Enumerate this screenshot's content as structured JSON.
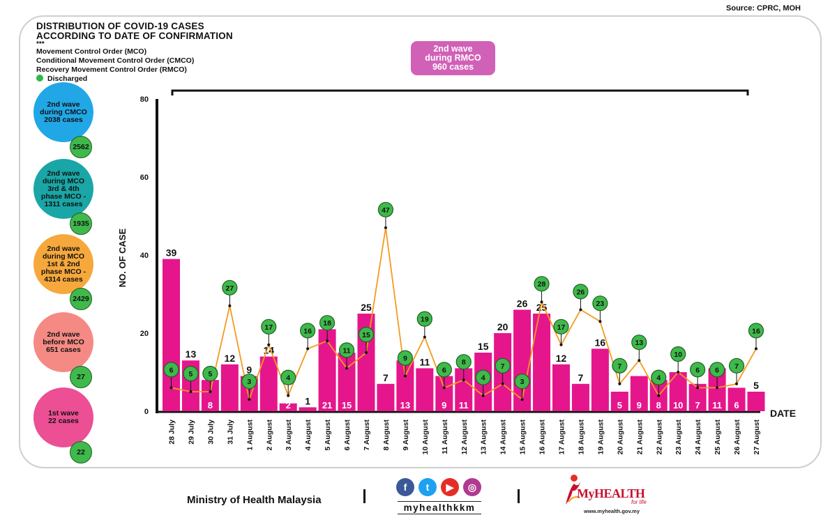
{
  "source": "Source: CPRC, MOH",
  "title_line1": "DISTRIBUTION OF COVID-19 CASES",
  "title_line2": "ACCORDING TO DATE OF CONFIRMATION",
  "stars": "***",
  "legend": {
    "mco": "Movement Control Order (MCO)",
    "cmco": "Conditional Movement Control Order (CMCO)",
    "rmco": "Recovery Movement Control Order (RMCO)",
    "discharged": "Discharged"
  },
  "banner": {
    "line1": "2nd wave",
    "line2": "during RMCO",
    "line3": "960 cases"
  },
  "waves": [
    {
      "lines": [
        "2nd wave",
        "during CMCO",
        "2038 cases"
      ],
      "discharged": "2562",
      "color": "#21a7e6"
    },
    {
      "lines": [
        "2nd wave",
        "during MCO",
        "3rd & 4th",
        "phase MCO -",
        "1311 cases"
      ],
      "discharged": "1935",
      "color": "#1aa6a6"
    },
    {
      "lines": [
        "2nd wave",
        "during MCO",
        "1st & 2nd",
        "phase MCO -",
        "4314 cases"
      ],
      "discharged": "2429",
      "color": "#f6a83c"
    },
    {
      "lines": [
        "2nd wave",
        "before MCO",
        "651 cases"
      ],
      "discharged": "27",
      "color": "#f58a84"
    },
    {
      "lines": [
        "1st wave",
        "22 cases"
      ],
      "discharged": "22",
      "color": "#ec4f93"
    }
  ],
  "chart_data": {
    "type": "bar",
    "ylabel": "NO. OF CASE",
    "xlabel": "DATE",
    "ylim": [
      0,
      80
    ],
    "yticks": [
      0,
      20,
      40,
      60,
      80
    ],
    "categories": [
      "28 July",
      "29 July",
      "30 July",
      "31 July",
      "1 August",
      "2 August",
      "3 August",
      "4 August",
      "5 August",
      "6 August",
      "7 August",
      "8 August",
      "9 August",
      "10 August",
      "11 August",
      "12 August",
      "13 August",
      "14 August",
      "15 August",
      "16 August",
      "17 August",
      "18 August",
      "19 August",
      "20 August",
      "21 August",
      "22 August",
      "23 August",
      "24 August",
      "25 August",
      "26 August",
      "27 August"
    ],
    "series": [
      {
        "values": [
          39,
          13,
          8,
          12,
          9,
          14,
          2,
          1,
          21,
          15,
          25,
          7,
          13,
          11,
          9,
          11,
          15,
          20,
          26,
          25,
          12,
          7,
          16,
          5,
          9,
          8,
          10,
          7,
          11,
          6,
          5
        ],
        "color": "#e5168c"
      },
      {
        "name": "Discharged",
        "type": "line",
        "values": [
          6,
          5,
          5,
          27,
          3,
          17,
          4,
          16,
          18,
          11,
          15,
          47,
          9,
          19,
          6,
          8,
          4,
          7,
          3,
          28,
          17,
          26,
          23,
          7,
          13,
          4,
          10,
          6,
          6,
          7,
          16
        ],
        "color": "#f49a1f"
      }
    ],
    "grid": false
  },
  "footer": {
    "ministry": "Ministry of Health Malaysia",
    "handle": "myhealthkkm",
    "brand": "MyHEALTH",
    "tagline": "for life",
    "url": "www.myhealth.gov.my",
    "sep": "|"
  },
  "icons": [
    "facebook-icon",
    "twitter-icon",
    "youtube-icon",
    "instagram-icon",
    "myhealth-logo"
  ]
}
